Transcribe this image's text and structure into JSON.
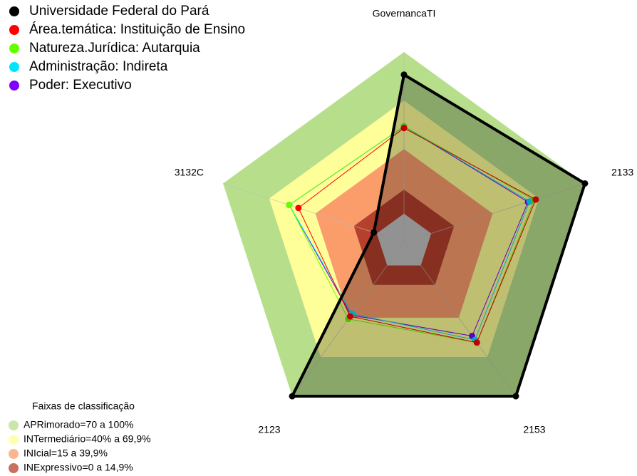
{
  "chart_data": {
    "type": "radar",
    "axes": [
      "GovernancaTI",
      "2133",
      "2153",
      "2123",
      "3132C"
    ],
    "rlim": [
      0,
      100
    ],
    "series": [
      {
        "name": "Universidade Federal do Pará",
        "color": "#000000",
        "values": [
          86,
          100,
          100,
          100,
          2
        ]
      },
      {
        "name": "Área.temática: Instituição de Ensino",
        "color": "#ff0000",
        "values": [
          53,
          68,
          59,
          39,
          51
        ]
      },
      {
        "name": "Natureza.Jurídica: Autarquia",
        "color": "#66ff00",
        "values": [
          54,
          67,
          59,
          41,
          57
        ]
      },
      {
        "name": "Administração: Indireta",
        "color": "#00e5ff",
        "values": [
          54,
          64,
          57,
          37,
          57
        ]
      },
      {
        "name": "Poder: Executivo",
        "color": "#7f00ff",
        "values": [
          54,
          63,
          54,
          38,
          57
        ]
      }
    ],
    "bands_title": "Faixas de classificação",
    "bands": [
      {
        "label": "APRimorado=70 a 100%",
        "from": 70,
        "to": 100,
        "color": "#b7df8b"
      },
      {
        "label": "INTermediário=40% a 69,9%",
        "from": 40,
        "to": 70,
        "color": "#ffff99"
      },
      {
        "label": "INIcial=15 a 39,9%",
        "from": 15,
        "to": 40,
        "color": "#fa9d6b"
      },
      {
        "label": "INExpressivo=0 a 14,9%",
        "from": 0,
        "to": 15,
        "color": "#b5412c"
      }
    ]
  }
}
